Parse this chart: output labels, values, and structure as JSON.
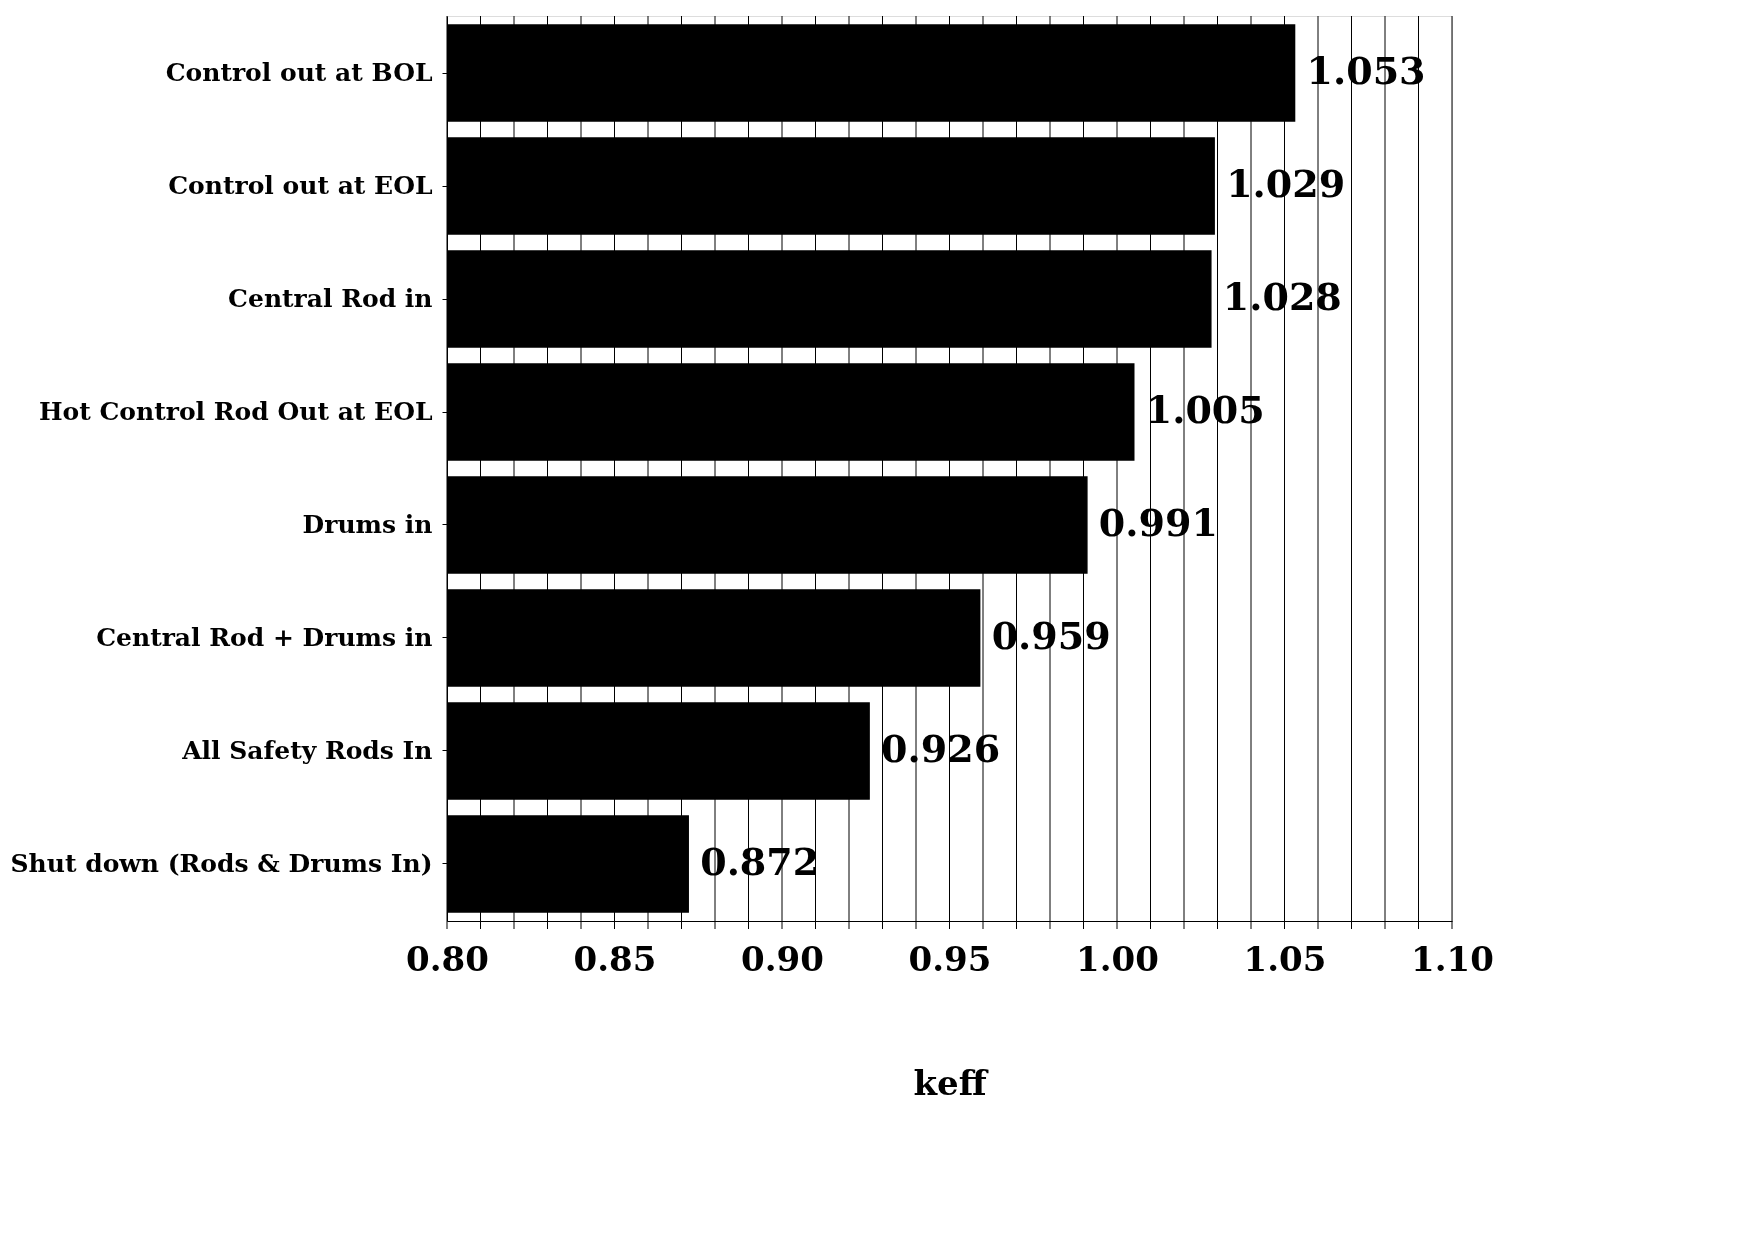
{
  "chart_data": {
    "type": "bar",
    "orientation": "horizontal",
    "xlabel": "keff",
    "categories": [
      "Control out at BOL",
      "Control out  at EOL",
      "Central Rod in",
      "Hot Control Rod Out at EOL",
      "Drums in",
      "Central Rod + Drums in",
      "All Safety Rods In",
      "Shut down (Rods & Drums In)"
    ],
    "values": [
      1.053,
      1.029,
      1.028,
      1.005,
      0.991,
      0.959,
      0.926,
      0.872
    ],
    "color": "#000000",
    "xlim": [
      0.8,
      1.1
    ],
    "xticks": [
      {
        "value": 0.8,
        "label": "0.80"
      },
      {
        "value": 0.81,
        "label": null
      },
      {
        "value": 0.82,
        "label": null
      },
      {
        "value": 0.83,
        "label": null
      },
      {
        "value": 0.84,
        "label": null
      },
      {
        "value": 0.85,
        "label": "0.85"
      },
      {
        "value": 0.86,
        "label": null
      },
      {
        "value": 0.87,
        "label": null
      },
      {
        "value": 0.88,
        "label": null
      },
      {
        "value": 0.89,
        "label": null
      },
      {
        "value": 0.9,
        "label": "0.90"
      },
      {
        "value": 0.91,
        "label": null
      },
      {
        "value": 0.92,
        "label": null
      },
      {
        "value": 0.93,
        "label": null
      },
      {
        "value": 0.94,
        "label": null
      },
      {
        "value": 0.95,
        "label": "0.95"
      },
      {
        "value": 0.96,
        "label": null
      },
      {
        "value": 0.97,
        "label": null
      },
      {
        "value": 0.98,
        "label": null
      },
      {
        "value": 0.99,
        "label": null
      },
      {
        "value": 1.0,
        "label": "1.00"
      },
      {
        "value": 1.01,
        "label": null
      },
      {
        "value": 1.02,
        "label": null
      },
      {
        "value": 1.03,
        "label": null
      },
      {
        "value": 1.04,
        "label": null
      },
      {
        "value": 1.05,
        "label": "1.05"
      },
      {
        "value": 1.06,
        "label": null
      },
      {
        "value": 1.07,
        "label": null
      },
      {
        "value": 1.08,
        "label": null
      },
      {
        "value": 1.09,
        "label": null
      },
      {
        "value": 1.1,
        "label": "1.10"
      }
    ],
    "grid": "x",
    "legend": false,
    "data_labels": true
  }
}
